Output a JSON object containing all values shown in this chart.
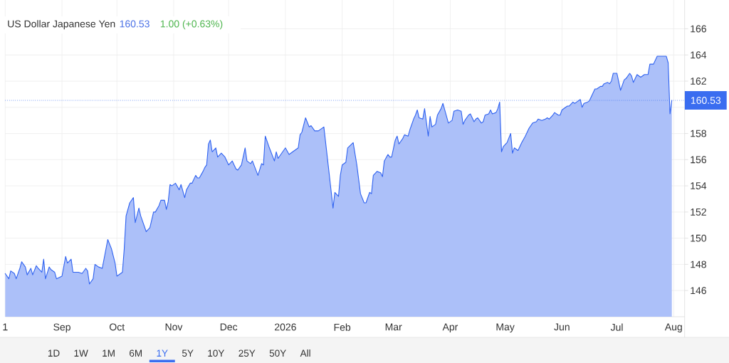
{
  "chart_data": {
    "type": "area",
    "title": "US Dollar Japanese Yen",
    "annotations": [
      "160.53",
      "1.00 (+0.63%)",
      "1D",
      "1W",
      "1M",
      "6M",
      "1Y",
      "5Y",
      "10Y",
      "25Y",
      "50Y",
      "All"
    ],
    "color": "#2f62f0",
    "x": [
      "2025-08-01",
      "2025-08-03",
      "2025-08-04",
      "2025-08-06",
      "2025-08-07",
      "2025-08-09",
      "2025-08-10",
      "2025-08-12",
      "2025-08-13",
      "2025-08-15",
      "2025-08-16",
      "2025-08-18",
      "2025-08-19",
      "2025-08-21",
      "2025-08-22",
      "2025-08-23",
      "2025-08-25",
      "2025-08-26",
      "2025-08-28",
      "2025-08-29",
      "2025-09-01",
      "2025-09-03",
      "2025-09-04",
      "2025-09-06",
      "2025-09-07",
      "2025-09-10",
      "2025-09-12",
      "2025-09-14",
      "2025-09-15",
      "2025-09-16",
      "2025-09-18",
      "2025-09-19",
      "2025-09-21",
      "2025-09-23",
      "2025-09-26",
      "2025-09-28",
      "2025-09-30",
      "2025-10-01",
      "2025-10-04",
      "2025-10-05",
      "2025-10-06",
      "2025-10-08",
      "2025-10-10",
      "2025-10-11",
      "2025-10-13",
      "2025-10-14",
      "2025-10-17",
      "2025-10-19",
      "2025-10-21",
      "2025-10-22",
      "2025-10-24",
      "2025-10-25",
      "2025-10-27",
      "2025-10-28",
      "2025-10-29",
      "2025-10-30",
      "2025-10-31",
      "2025-11-02",
      "2025-11-04",
      "2025-11-05",
      "2025-11-07",
      "2025-11-08",
      "2025-11-10",
      "2025-11-11",
      "2025-11-13",
      "2025-11-14",
      "2025-11-15",
      "2025-11-17",
      "2025-11-18",
      "2025-11-19",
      "2025-11-20",
      "2025-11-21",
      "2025-11-22",
      "2025-11-24",
      "2025-11-25",
      "2025-11-27",
      "2025-11-29",
      "2025-12-01",
      "2025-12-03",
      "2025-12-05",
      "2025-12-06",
      "2025-12-08",
      "2025-12-10",
      "2025-12-11",
      "2025-12-13",
      "2025-12-14",
      "2025-12-17",
      "2025-12-19",
      "2025-12-20",
      "2025-12-21",
      "2025-12-23",
      "2025-12-26",
      "2025-12-27",
      "2025-12-28",
      "2025-12-30",
      "2026-01-01",
      "2026-01-03",
      "2026-01-05",
      "2026-01-08",
      "2026-01-09",
      "2026-01-10",
      "2026-01-12",
      "2026-01-14",
      "2026-01-15",
      "2026-01-17",
      "2026-01-19",
      "2026-01-22",
      "2026-01-25",
      "2026-01-27",
      "2026-01-28",
      "2026-01-30",
      "2026-01-31",
      "2026-02-01",
      "2026-02-03",
      "2026-02-04",
      "2026-02-07",
      "2026-02-09",
      "2026-02-11",
      "2026-02-13",
      "2026-02-14",
      "2026-02-16",
      "2026-02-17",
      "2026-02-18",
      "2026-02-20",
      "2026-02-22",
      "2026-02-23",
      "2026-02-24",
      "2026-02-26",
      "2026-02-27",
      "2026-02-28",
      "2026-03-02",
      "2026-03-03",
      "2026-03-04",
      "2026-03-06",
      "2026-03-07",
      "2026-03-09",
      "2026-03-10",
      "2026-03-12",
      "2026-03-13",
      "2026-03-14",
      "2026-03-15",
      "2026-03-17",
      "2026-03-18",
      "2026-03-20",
      "2026-03-21",
      "2026-03-22",
      "2026-03-24",
      "2026-03-25",
      "2026-03-27",
      "2026-03-28",
      "2026-03-29",
      "2026-03-31",
      "2026-04-02",
      "2026-04-03",
      "2026-04-05",
      "2026-04-07",
      "2026-04-08",
      "2026-04-09",
      "2026-04-11",
      "2026-04-12",
      "2026-04-14",
      "2026-04-15",
      "2026-04-16",
      "2026-04-18",
      "2026-04-19",
      "2026-04-20",
      "2026-04-22",
      "2026-04-23",
      "2026-04-24",
      "2026-04-26",
      "2026-04-27",
      "2026-04-28",
      "2026-04-29",
      "2026-04-30",
      "2026-05-02",
      "2026-05-04",
      "2026-05-05",
      "2026-05-06",
      "2026-05-08",
      "2026-05-10",
      "2026-05-12",
      "2026-05-14",
      "2026-05-16",
      "2026-05-18",
      "2026-05-19",
      "2026-05-21",
      "2026-05-23",
      "2026-05-24",
      "2026-05-25",
      "2026-05-27",
      "2026-05-28",
      "2026-05-30",
      "2026-05-31",
      "2026-06-01",
      "2026-06-03",
      "2026-06-04",
      "2026-06-05",
      "2026-06-07",
      "2026-06-08",
      "2026-06-09",
      "2026-06-11",
      "2026-06-12",
      "2026-06-13",
      "2026-06-15",
      "2026-06-16",
      "2026-06-17",
      "2026-06-19",
      "2026-06-20",
      "2026-06-22",
      "2026-06-23",
      "2026-06-24",
      "2026-06-26",
      "2026-06-27",
      "2026-06-28",
      "2026-06-29",
      "2026-07-01",
      "2026-07-03",
      "2026-07-05",
      "2026-07-06",
      "2026-07-08",
      "2026-07-09",
      "2026-07-10",
      "2026-07-12",
      "2026-07-14",
      "2026-07-16",
      "2026-07-18",
      "2026-07-19",
      "2026-07-21",
      "2026-07-23",
      "2026-07-25",
      "2026-07-27",
      "2026-07-28",
      "2026-07-29",
      "2026-07-30",
      "2026-07-31"
    ],
    "values": [
      147.3,
      146.9,
      147.5,
      147.3,
      146.9,
      147.7,
      148.2,
      147.8,
      147.2,
      147.7,
      147.2,
      147.9,
      147.7,
      147.4,
      148.4,
      146.9,
      147.8,
      147.6,
      147.4,
      146.9,
      147.1,
      148.6,
      148.1,
      148.4,
      147.4,
      147.4,
      147.3,
      147.7,
      147.5,
      146.5,
      146.9,
      148.0,
      147.8,
      147.7,
      149.9,
      149.2,
      148.1,
      147.1,
      147.4,
      149.2,
      151.7,
      152.7,
      153.1,
      151.2,
      152.3,
      151.7,
      150.5,
      150.8,
      152.0,
      152.0,
      152.5,
      152.9,
      152.9,
      152.2,
      152.8,
      154.1,
      154.0,
      154.2,
      153.7,
      154.1,
      153.1,
      153.7,
      154.2,
      154.2,
      154.8,
      154.6,
      154.6,
      155.1,
      155.4,
      155.6,
      157.2,
      157.5,
      156.6,
      156.9,
      156.2,
      156.5,
      156.2,
      155.6,
      155.9,
      155.3,
      155.2,
      155.6,
      156.9,
      155.9,
      155.7,
      155.9,
      154.8,
      155.7,
      155.6,
      157.8,
      157.0,
      155.9,
      156.6,
      156.1,
      156.5,
      156.9,
      156.4,
      156.6,
      156.9,
      157.9,
      158.1,
      159.2,
      158.5,
      158.6,
      158.2,
      158.2,
      158.5,
      154.8,
      152.3,
      153.5,
      153.2,
      154.8,
      155.6,
      155.8,
      156.9,
      157.3,
      155.6,
      153.4,
      152.7,
      152.7,
      153.5,
      153.4,
      154.8,
      155.1,
      155.0,
      154.7,
      155.9,
      156.4,
      156.2,
      156.2,
      157.5,
      157.8,
      157.2,
      157.6,
      157.9,
      157.8,
      158.3,
      159.1,
      159.4,
      159.8,
      159.2,
      159.1,
      159.9,
      157.8,
      159.3,
      158.5,
      158.7,
      159.4,
      159.9,
      160.3,
      159.8,
      158.8,
      159.0,
      159.7,
      159.8,
      159.7,
      158.7,
      159.0,
      159.4,
      159.5,
      158.9,
      159.1,
      159.2,
      158.8,
      158.9,
      159.4,
      159.5,
      159.8,
      159.5,
      159.6,
      159.9,
      160.4,
      156.6,
      157.0,
      157.3,
      158.0,
      156.5,
      156.9,
      156.7,
      157.3,
      157.8,
      158.4,
      158.8,
      158.9,
      159.1,
      159.0,
      159.1,
      159.2,
      159.1,
      159.4,
      159.6,
      159.4,
      159.4,
      159.8,
      160.0,
      160.1,
      160.1,
      160.4,
      160.3,
      160.4,
      160.6,
      160.0,
      160.3,
      160.4,
      160.5,
      160.8,
      161.4,
      161.4,
      161.6,
      161.6,
      161.8,
      161.9,
      161.8,
      162.0,
      162.6,
      162.6,
      161.3,
      162.1,
      162.2,
      162.6,
      162.4,
      161.9,
      162.5,
      162.3,
      162.5,
      162.5,
      163.3,
      163.3,
      163.9,
      163.9,
      163.9,
      163.9,
      163.4,
      159.5,
      160.53
    ],
    "xlim": [
      "2025-08-01",
      "2026-08-07"
    ],
    "ylim": [
      144,
      168.2
    ],
    "xticks": [
      {
        "value": "2025-08-01",
        "label": "1"
      },
      {
        "value": "2025-09-01",
        "label": "Sep"
      },
      {
        "value": "2025-10-01",
        "label": "Oct"
      },
      {
        "value": "2025-11-01",
        "label": "Nov"
      },
      {
        "value": "2025-12-01",
        "label": "Dec"
      },
      {
        "value": "2026-01-01",
        "label": "2026"
      },
      {
        "value": "2026-02-01",
        "label": "Feb"
      },
      {
        "value": "2026-03-01",
        "label": "Mar"
      },
      {
        "value": "2026-04-01",
        "label": "Apr"
      },
      {
        "value": "2026-05-01",
        "label": "May"
      },
      {
        "value": "2026-06-01",
        "label": "Jun"
      },
      {
        "value": "2026-07-01",
        "label": "Jul"
      },
      {
        "value": "2026-08-01",
        "label": "Aug"
      }
    ],
    "yticks": [
      146,
      148,
      150,
      152,
      154,
      156,
      158,
      {
        "value": 160,
        "label": null
      },
      162,
      164,
      166
    ],
    "grid": true,
    "ref_lines": [
      {
        "axis": "y",
        "value": 160.53,
        "label": "160.53",
        "color": "#3a6df0",
        "line_style": "dotted"
      }
    ]
  }
}
